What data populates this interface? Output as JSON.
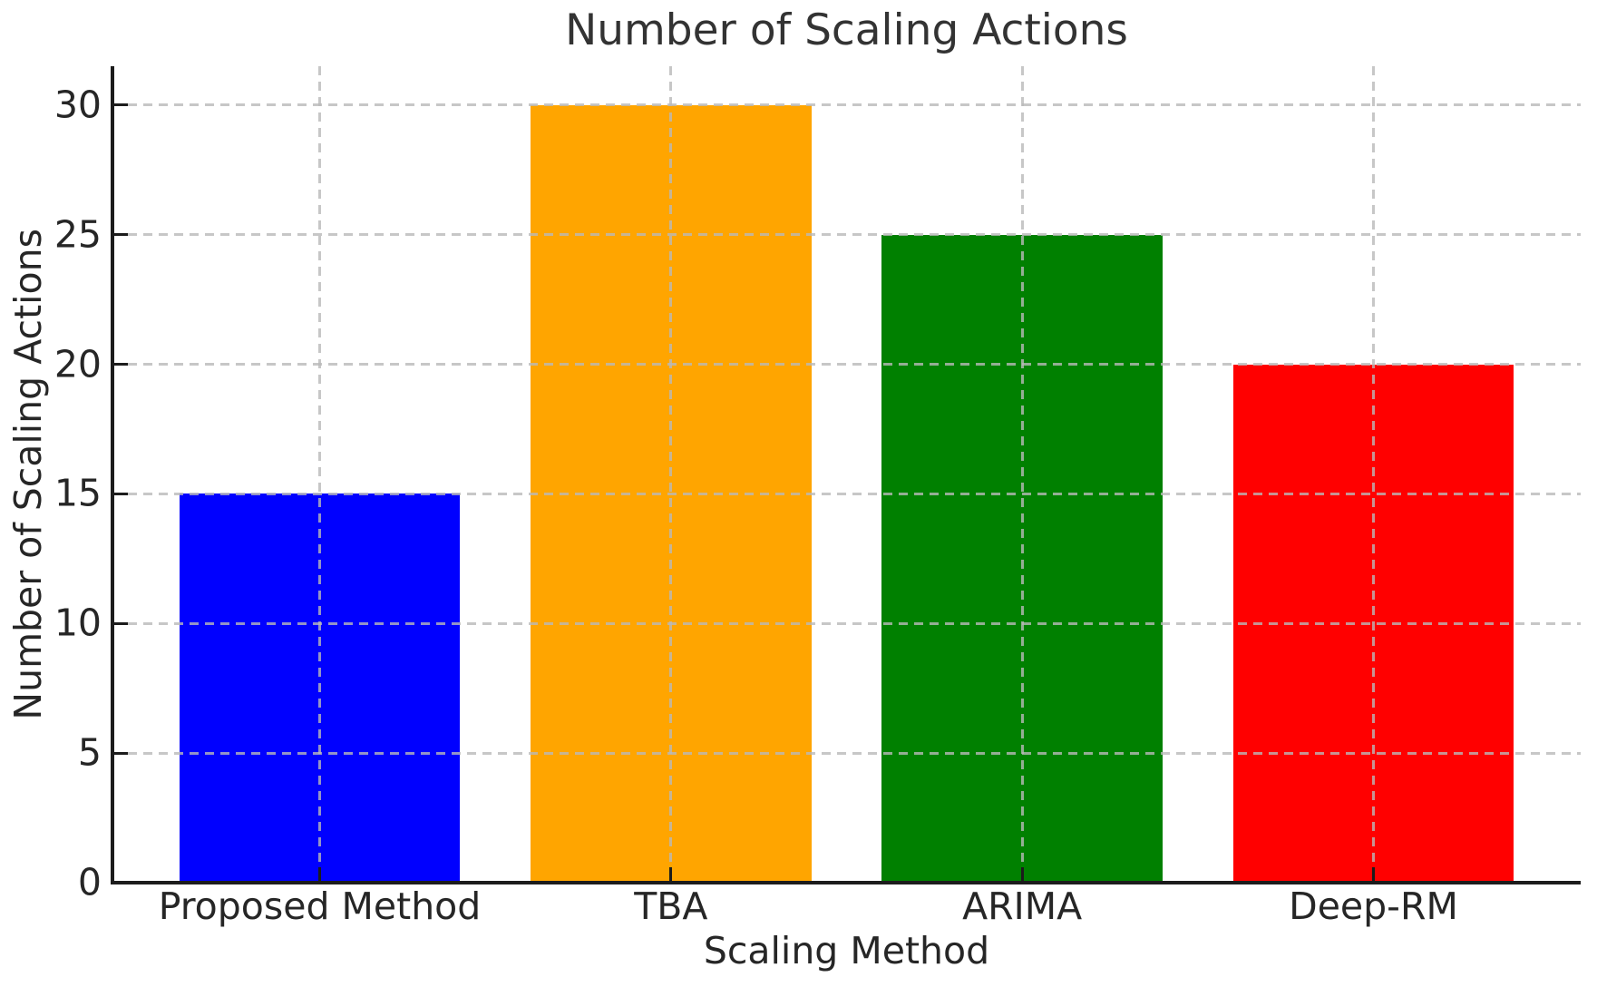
{
  "chart_data": {
    "type": "bar",
    "title": "Number of Scaling Actions",
    "xlabel": "Scaling Method",
    "ylabel": "Number of Scaling Actions",
    "categories": [
      "Proposed Method",
      "TBA",
      "ARIMA",
      "Deep-RM"
    ],
    "values": [
      15,
      30,
      25,
      20
    ],
    "bar_colors": [
      "#0000ff",
      "#ffa500",
      "#008000",
      "#ff0000"
    ],
    "yticks": [
      0,
      5,
      10,
      15,
      20,
      25,
      30
    ],
    "ylim": [
      0,
      31.5
    ],
    "xlim": [
      -0.59,
      3.59
    ],
    "bar_width": 0.8,
    "grid": {
      "visible": true,
      "style": "dashed",
      "axis": "both",
      "above_bars": true
    },
    "legend_position": "none",
    "spines": [
      "left",
      "bottom"
    ]
  },
  "style": {
    "text_color": "#262626",
    "title_color": "#333333",
    "axis_color": "#1c1c1c",
    "grid_color": "rgba(185,185,185,0.8)",
    "background": "#ffffff"
  }
}
